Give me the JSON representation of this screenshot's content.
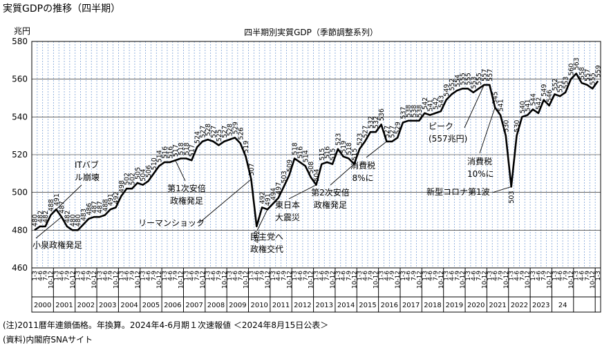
{
  "page_title": "実質GDPの推移（四半期）",
  "y_unit": "兆円",
  "notes": [
    "(注)2011暦年連鎖価格。年換算。2024年4-6月期１次速報値 ＜2024年8月15日公表＞",
    "(資料)内閣府SNAサイト"
  ],
  "chart_data": {
    "type": "line",
    "title": "四半期別実質GDP（季節調整系列）",
    "ylabel": "兆円",
    "ylim": [
      460,
      580
    ],
    "yticks": [
      460,
      480,
      500,
      520,
      540,
      560,
      580
    ],
    "grid": true,
    "line_color": "#000000",
    "grid_color": "#7aa0d6",
    "quarter_labels": [
      "1-3",
      "4-6",
      "7-9",
      "10-12"
    ],
    "years": [
      "2000",
      "2001",
      "2002",
      "2003",
      "2004",
      "2005",
      "2006",
      "2007",
      "2008",
      "2009",
      "2010",
      "2011",
      "2012",
      "2013",
      "2014",
      "2015",
      "2016",
      "2017",
      "2018",
      "2019",
      "2020",
      "2021",
      "2022",
      "2023",
      "24"
    ],
    "values": [
      480,
      482,
      482,
      488,
      491,
      487,
      482,
      480,
      480,
      483,
      486,
      487,
      487,
      488,
      491,
      492,
      498,
      502,
      502,
      505,
      504,
      506,
      510,
      514,
      516,
      516,
      517,
      518,
      518,
      517,
      524,
      527,
      528,
      527,
      525,
      527,
      528,
      529,
      526,
      519,
      507,
      482,
      492,
      491,
      494,
      497,
      503,
      509,
      518,
      516,
      514,
      508,
      504,
      515,
      516,
      515,
      523,
      519,
      518,
      515,
      523,
      527,
      532,
      532,
      536,
      527,
      527,
      529,
      537,
      538,
      538,
      538,
      542,
      541,
      542,
      543,
      549,
      552,
      554,
      555,
      555,
      553,
      555,
      557,
      557,
      545,
      541,
      530,
      503,
      530,
      540,
      541,
      544,
      542,
      549,
      546,
      552,
      551,
      553,
      560,
      563,
      558,
      557,
      555,
      559
    ],
    "value_labels": [
      "480",
      "482",
      "482",
      "488",
      "491",
      "487",
      "482",
      "480",
      "480",
      "483",
      "486",
      "487",
      "487",
      "488",
      "491",
      "492",
      "498",
      "502",
      "502",
      "505",
      "504",
      "506",
      "510",
      "514",
      "516",
      "516",
      "517",
      "518",
      "518",
      "517",
      "524",
      "527",
      "528",
      "527",
      "525",
      "527",
      "528",
      "529",
      "526",
      "519",
      "507",
      "482",
      "492",
      "491",
      "494",
      "497",
      "503",
      "509",
      "518",
      "516",
      "514",
      "508",
      "504",
      "515",
      "516",
      "515",
      "523",
      "519",
      "518",
      "515",
      "523",
      "527",
      "532",
      "532",
      "536",
      "527",
      "527",
      "529",
      "537",
      "538",
      "538",
      "538",
      "542",
      "541",
      "542",
      "543",
      "549",
      "552",
      "554",
      "555",
      "555",
      "553",
      "555",
      "557",
      "557",
      "545",
      "541",
      "530",
      "503",
      "530",
      "540",
      "541",
      "544",
      "542",
      "549",
      "546",
      "552",
      "551",
      "553",
      "560",
      "563",
      "558",
      "557",
      "555",
      "559"
    ],
    "annotations": [
      {
        "id": "it-bubble",
        "text": "ITバブル崩壊",
        "lines": [
          "ITバブ",
          "ル崩壊"
        ]
      },
      {
        "id": "koizumi",
        "text": "小泉政権発足",
        "lines": [
          "小泉政権発足"
        ]
      },
      {
        "id": "abe1",
        "text": "第1次安倍政権発足",
        "lines": [
          "第1次安倍",
          "政権発足"
        ]
      },
      {
        "id": "lehman",
        "text": "リーマンショック",
        "lines": [
          "リーマンショック"
        ]
      },
      {
        "id": "dpj",
        "text": "民主党へ政権交代",
        "lines": [
          "民主党へ",
          "政権交代"
        ]
      },
      {
        "id": "quake",
        "text": "東日本大震災",
        "lines": [
          "東日本",
          "大震災"
        ]
      },
      {
        "id": "abe2",
        "text": "第2次安倍政権発足",
        "lines": [
          "第2次安倍",
          "政権発足"
        ]
      },
      {
        "id": "tax8",
        "text": "消費税8%に",
        "lines": [
          "消費税",
          "8%に"
        ]
      },
      {
        "id": "peak",
        "text": "ピーク（557兆円）",
        "lines": [
          "ピーク",
          "(557兆円)"
        ]
      },
      {
        "id": "tax10",
        "text": "消費税10%に",
        "lines": [
          "消費税",
          "10%に"
        ]
      },
      {
        "id": "covid",
        "text": "新型コロナ第1波",
        "lines": [
          "新型コロナ第1波"
        ]
      }
    ]
  }
}
